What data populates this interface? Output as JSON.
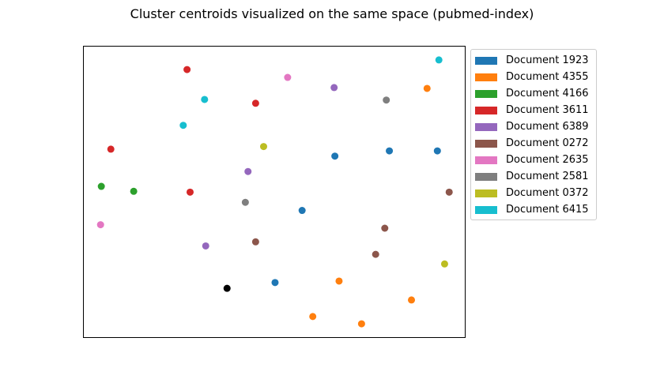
{
  "chart_data": {
    "type": "scatter",
    "title": "Cluster centroids visualized on the same space (pubmed-index)",
    "xlabel": "",
    "ylabel": "",
    "xlim": [
      0,
      100
    ],
    "ylim": [
      0,
      100
    ],
    "grid": false,
    "legend_position": "outside-right-top",
    "series": [
      {
        "name": "Document 1923",
        "color": "#1f77b4",
        "points": [
          [
            65.9,
            62.3
          ],
          [
            80.2,
            64.1
          ],
          [
            92.8,
            64.1
          ],
          [
            57.3,
            43.6
          ],
          [
            50.2,
            18.8
          ]
        ]
      },
      {
        "name": "Document 4355",
        "color": "#ff7f0e",
        "points": [
          [
            90.1,
            85.6
          ],
          [
            67.0,
            19.3
          ],
          [
            86.0,
            12.8
          ],
          [
            60.1,
            7.1
          ],
          [
            72.9,
            4.6
          ]
        ]
      },
      {
        "name": "Document 4166",
        "color": "#2ca02c",
        "points": [
          [
            4.6,
            51.9
          ],
          [
            13.1,
            50.2
          ]
        ]
      },
      {
        "name": "Document 3611",
        "color": "#d62728",
        "points": [
          [
            27.1,
            92.1
          ],
          [
            45.1,
            80.5
          ],
          [
            7.1,
            64.7
          ],
          [
            27.9,
            49.9
          ]
        ]
      },
      {
        "name": "Document 6389",
        "color": "#9467bd",
        "points": [
          [
            65.7,
            85.9
          ],
          [
            43.1,
            57.0
          ],
          [
            32.0,
            31.4
          ]
        ]
      },
      {
        "name": "Document 0272",
        "color": "#8c564b",
        "points": [
          [
            95.9,
            49.9
          ],
          [
            79.0,
            37.5
          ],
          [
            45.1,
            32.8
          ],
          [
            76.6,
            28.5
          ]
        ]
      },
      {
        "name": "Document 2635",
        "color": "#e377c2",
        "points": [
          [
            53.5,
            89.4
          ],
          [
            4.4,
            38.7
          ]
        ]
      },
      {
        "name": "Document 2581",
        "color": "#7f7f7f",
        "points": [
          [
            79.4,
            81.6
          ],
          [
            42.4,
            46.4
          ]
        ]
      },
      {
        "name": "Document 0372",
        "color": "#bcbd22",
        "points": [
          [
            47.2,
            65.6
          ],
          [
            94.7,
            25.2
          ]
        ]
      },
      {
        "name": "Document 6415",
        "color": "#17becf",
        "points": [
          [
            93.2,
            95.4
          ],
          [
            31.7,
            81.8
          ],
          [
            26.1,
            72.9
          ]
        ]
      }
    ],
    "extra_points": [
      {
        "color": "#000000",
        "x": 37.6,
        "y": 16.8
      }
    ]
  }
}
